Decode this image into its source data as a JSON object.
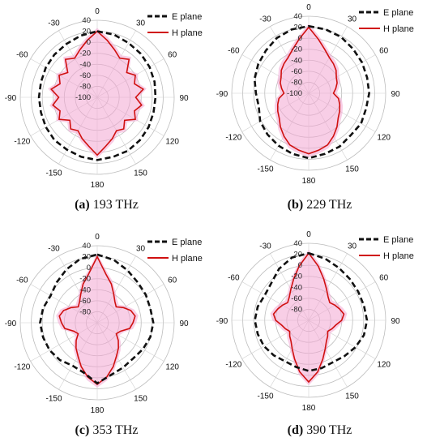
{
  "figure": {
    "panels": [
      {
        "caption_letter": "(a)",
        "caption_text": " 193 THz"
      },
      {
        "caption_letter": "(b)",
        "caption_text": " 229 THz"
      },
      {
        "caption_letter": "(c)",
        "caption_text": " 353 THz"
      },
      {
        "caption_letter": "(d)",
        "caption_text": " 390 THz"
      }
    ]
  },
  "colors": {
    "e_plane": "#111111",
    "h_plane": "#d01010",
    "h_plane_shade": "#f3a6d2",
    "grid": "#bdbdbd"
  },
  "chart_data": [
    {
      "type": "polar-line",
      "radial_ticks": [
        "40",
        "20",
        "0",
        "-20",
        "-40",
        "-60",
        "-80",
        "-100"
      ],
      "rlim": [
        -100,
        40
      ],
      "angle_ticks": [
        "0",
        "30",
        "60",
        "90",
        "120",
        "150",
        "180",
        "-150",
        "-120",
        "-90",
        "-60",
        "-30"
      ],
      "legend_position": "top-right",
      "series": [
        {
          "name": "E plane",
          "style": "dashed",
          "angles": [
            0,
            15,
            30,
            45,
            60,
            75,
            90,
            105,
            120,
            135,
            150,
            165,
            180,
            195,
            210,
            225,
            240,
            255,
            270,
            285,
            300,
            315,
            330,
            345
          ],
          "values": [
            20,
            18,
            14,
            12,
            10,
            8,
            6,
            6,
            8,
            10,
            12,
            12,
            14,
            12,
            10,
            10,
            8,
            6,
            6,
            6,
            8,
            10,
            12,
            16
          ]
        },
        {
          "name": "H plane",
          "style": "solid",
          "angles": [
            0,
            10,
            20,
            30,
            40,
            50,
            60,
            70,
            80,
            90,
            100,
            110,
            120,
            130,
            140,
            150,
            160,
            170,
            180
          ],
          "values": [
            20,
            5,
            -8,
            -18,
            -10,
            -30,
            -20,
            -28,
            -15,
            -30,
            -18,
            -28,
            -20,
            -35,
            -25,
            -30,
            -20,
            -10,
            5
          ]
        }
      ]
    },
    {
      "type": "polar-line",
      "radial_ticks": [
        "40",
        "20",
        "0",
        "-20",
        "-40",
        "-60",
        "-80",
        "-100"
      ],
      "rlim": [
        -100,
        40
      ],
      "angle_ticks": [
        "0",
        "30",
        "60",
        "90",
        "120",
        "150",
        "180",
        "-150",
        "-120",
        "-90",
        "-60",
        "-30"
      ],
      "legend_position": "top-right",
      "series": [
        {
          "name": "E plane",
          "style": "dashed",
          "angles": [
            0,
            15,
            30,
            45,
            60,
            75,
            90,
            105,
            120,
            135,
            150,
            165,
            180,
            195,
            210,
            225,
            240,
            255,
            270,
            285,
            300,
            315,
            330,
            345
          ],
          "values": [
            22,
            20,
            18,
            14,
            12,
            10,
            10,
            8,
            10,
            8,
            12,
            14,
            18,
            14,
            10,
            6,
            2,
            -6,
            -4,
            2,
            6,
            10,
            16,
            20
          ]
        },
        {
          "name": "H plane",
          "style": "solid",
          "angles": [
            0,
            10,
            20,
            30,
            40,
            50,
            60,
            70,
            80,
            90,
            100,
            110,
            120,
            130,
            140,
            150,
            160,
            170,
            180
          ],
          "values": [
            20,
            0,
            -15,
            -25,
            -30,
            -35,
            -42,
            -45,
            -50,
            -55,
            -45,
            -40,
            -35,
            -30,
            -20,
            -10,
            0,
            5,
            10
          ]
        }
      ]
    },
    {
      "type": "polar-line",
      "radial_ticks": [
        "40",
        "20",
        "0",
        "-20",
        "-40",
        "-60",
        "-80"
      ],
      "rlim": [
        -100,
        40
      ],
      "angle_ticks": [
        "0",
        "30",
        "60",
        "90",
        "120",
        "150",
        "180",
        "-150",
        "-120",
        "-90",
        "-60",
        "-30"
      ],
      "legend_position": "top-right",
      "series": [
        {
          "name": "E plane",
          "style": "dashed",
          "angles": [
            0,
            15,
            30,
            45,
            60,
            75,
            90,
            105,
            120,
            135,
            150,
            165,
            180,
            195,
            210,
            225,
            240,
            255,
            270,
            285,
            300,
            315,
            330,
            345
          ],
          "values": [
            24,
            18,
            10,
            4,
            2,
            0,
            2,
            0,
            -4,
            -8,
            -6,
            -2,
            10,
            -6,
            -10,
            -4,
            0,
            2,
            4,
            2,
            -2,
            4,
            12,
            20
          ]
        },
        {
          "name": "H plane",
          "style": "solid",
          "angles": [
            0,
            10,
            20,
            30,
            40,
            50,
            60,
            70,
            80,
            90,
            100,
            110,
            120,
            130,
            140,
            150,
            160,
            170,
            180
          ],
          "values": [
            20,
            -10,
            -25,
            -40,
            -50,
            -55,
            -45,
            -35,
            -30,
            -35,
            -40,
            -55,
            -60,
            -50,
            -40,
            -30,
            -15,
            0,
            12
          ]
        }
      ]
    },
    {
      "type": "polar-line",
      "radial_ticks": [
        "40",
        "20",
        "0",
        "-20",
        "-40",
        "-60",
        "-80"
      ],
      "rlim": [
        -100,
        40
      ],
      "angle_ticks": [
        "0",
        "30",
        "60",
        "90",
        "120",
        "150",
        "180",
        "-150",
        "-120",
        "-90",
        "-60",
        "-30"
      ],
      "legend_position": "top-right",
      "series": [
        {
          "name": "E plane",
          "style": "dashed",
          "angles": [
            0,
            15,
            30,
            45,
            60,
            75,
            90,
            105,
            120,
            135,
            150,
            165,
            180,
            195,
            210,
            225,
            240,
            255,
            270,
            285,
            300,
            315,
            330,
            345
          ],
          "values": [
            22,
            16,
            10,
            6,
            4,
            4,
            6,
            4,
            -2,
            -8,
            -12,
            -10,
            -8,
            -12,
            -14,
            -10,
            -6,
            -4,
            -2,
            -4,
            -8,
            -4,
            8,
            18
          ]
        },
        {
          "name": "H plane",
          "style": "solid",
          "angles": [
            0,
            10,
            20,
            30,
            40,
            50,
            60,
            70,
            80,
            90,
            100,
            110,
            120,
            130,
            140,
            150,
            160,
            170,
            180
          ],
          "values": [
            22,
            0,
            -20,
            -35,
            -45,
            -50,
            -45,
            -40,
            -35,
            -40,
            -50,
            -55,
            -60,
            -55,
            -50,
            -40,
            -25,
            -5,
            12
          ]
        }
      ]
    }
  ]
}
